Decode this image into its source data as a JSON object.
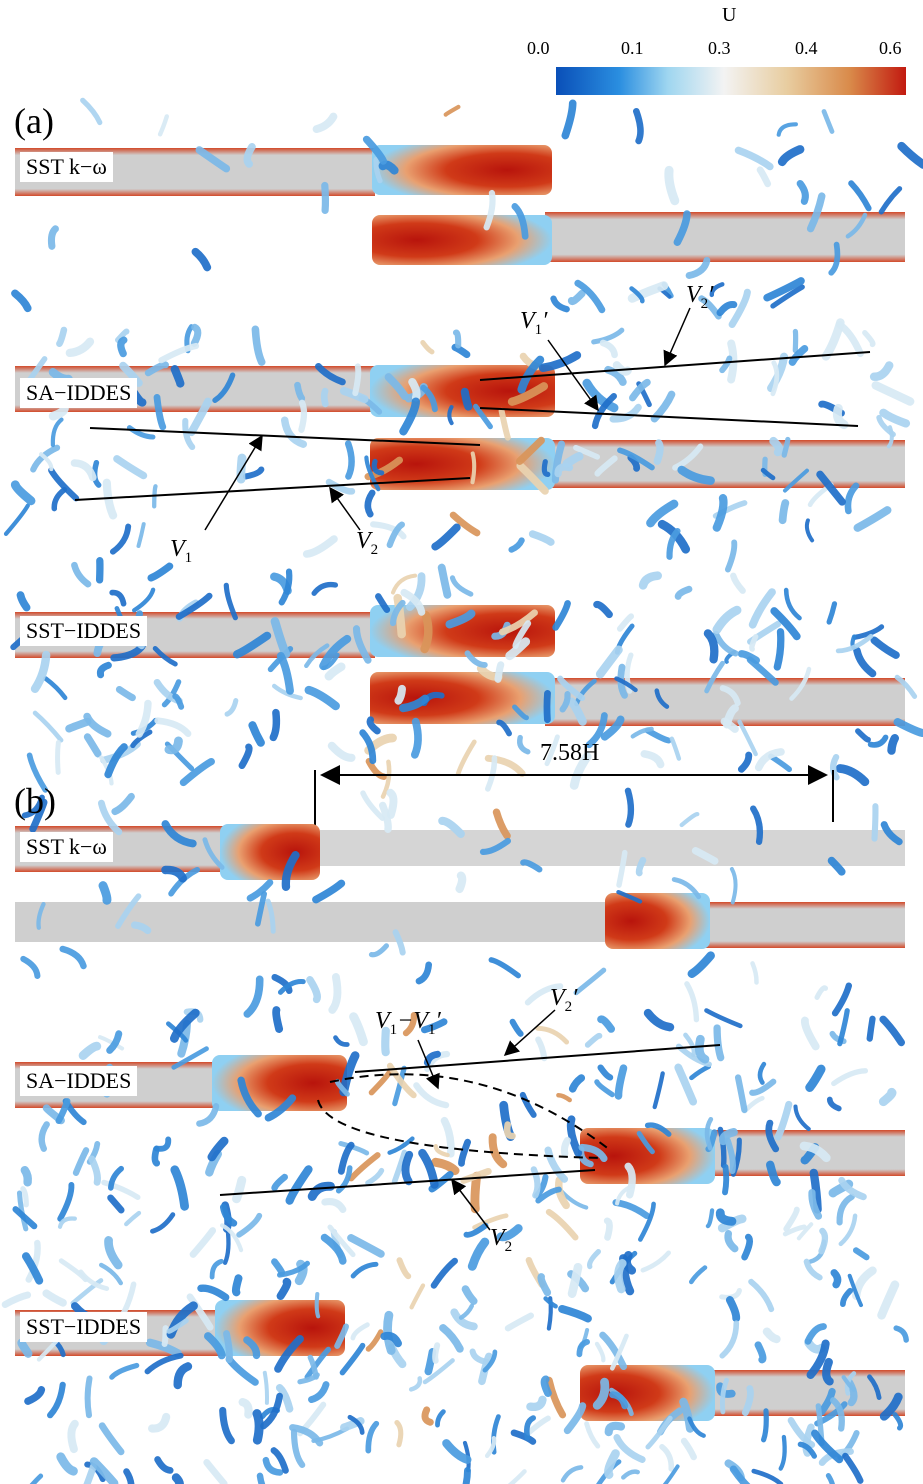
{
  "colorbar": {
    "title": "U",
    "ticks": [
      "0.0",
      "0.1",
      "0.3",
      "0.4",
      "0.6"
    ],
    "colors": [
      "#0a4fb8",
      "#2a8ee0",
      "#9fd6f0",
      "#f3f3f3",
      "#e8cda0",
      "#d98a4a",
      "#c21a10"
    ]
  },
  "panels": [
    {
      "tag": "(a)",
      "rows": [
        {
          "label": "SST k−ω",
          "method": "SST k-omega"
        },
        {
          "label": "SA−IDDES",
          "method": "SA-IDDES"
        },
        {
          "label": "SST−IDDES",
          "method": "SST-IDDES"
        }
      ]
    },
    {
      "tag": "(b)",
      "rows": [
        {
          "label": "SST k−ω",
          "method": "SST k-omega"
        },
        {
          "label": "SA−IDDES",
          "method": "SA-IDDES"
        },
        {
          "label": "SST−IDDES",
          "method": "SST-IDDES"
        }
      ]
    }
  ],
  "annotations": {
    "a_v1p_main": "V",
    "a_v1p_sub": "1",
    "a_v1p_prime": "′",
    "a_v2p_main": "V",
    "a_v2p_sub": "2",
    "a_v2p_prime": "′",
    "a_v1_main": "V",
    "a_v1_sub": "1",
    "a_v2_main": "V",
    "a_v2_sub": "2",
    "b_v1v1p_main": "V",
    "b_v1v1p_sub": "1",
    "b_v1v1p_dash": "−V",
    "b_v1v1p_sub2": "1",
    "b_v1v1p_prime": "′",
    "b_v2p_main": "V",
    "b_v2p_sub": "2",
    "b_v2p_prime": "′",
    "b_v2_main": "V",
    "b_v2_sub": "2"
  },
  "dimension": {
    "label": "7.58H"
  },
  "colors": {
    "block": "#cfcfcf",
    "vortex_blue": "#2f86d6",
    "vortex_light": "#9ccbe8",
    "hot": "#c8200f"
  }
}
